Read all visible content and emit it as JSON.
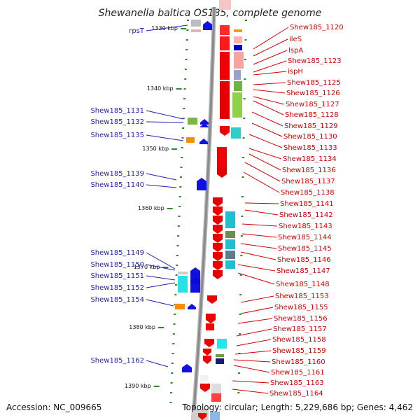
{
  "title": "Shewanella baltica OS185, complete genome",
  "accession": "Accession: NC_009665",
  "topology": "Topology: circular; Length: 5,229,686 bp; Genes: 4,462",
  "colors": {
    "forward_gene": "#1010e0",
    "reverse_gene": "#f00000",
    "left_label": "#1f1fb4",
    "right_label": "#d40000",
    "axis": "#8a8a8a",
    "tick": "#2a8a2a"
  },
  "scale_labels": [
    "1330 kbp",
    "1340 kbp",
    "1350 kbp",
    "1360 kbp",
    "1370 kbp",
    "1380 kbp",
    "1390 kbp"
  ],
  "left_genes": [
    "rpsT",
    "Shew185_1131",
    "Shew185_1132",
    "Shew185_1135",
    "Shew185_1139",
    "Shew185_1140",
    "Shew185_1149",
    "Shew185_1150",
    "Shew185_1151",
    "Shew185_1152",
    "Shew185_1154",
    "Shew185_1162"
  ],
  "right_genes": [
    "Shew185_1120",
    "ileS",
    "lspA",
    "Shew185_1123",
    "ispH",
    "Shew185_1125",
    "Shew185_1126",
    "Shew185_1127",
    "Shew185_1128",
    "Shew185_1129",
    "Shew185_1130",
    "Shew185_1133",
    "Shew185_1134",
    "Shew185_1136",
    "Shew185_1137",
    "Shew185_1138",
    "Shew185_1141",
    "Shew185_1142",
    "Shew185_1143",
    "Shew185_1144",
    "Shew185_1145",
    "Shew185_1146",
    "Shew185_1147",
    "Shew185_1148",
    "Shew185_1153",
    "Shew185_1155",
    "Shew185_1156",
    "Shew185_1157",
    "Shew185_1158",
    "Shew185_1159",
    "Shew185_1160",
    "Shew185_1161",
    "Shew185_1163",
    "Shew185_1164"
  ]
}
